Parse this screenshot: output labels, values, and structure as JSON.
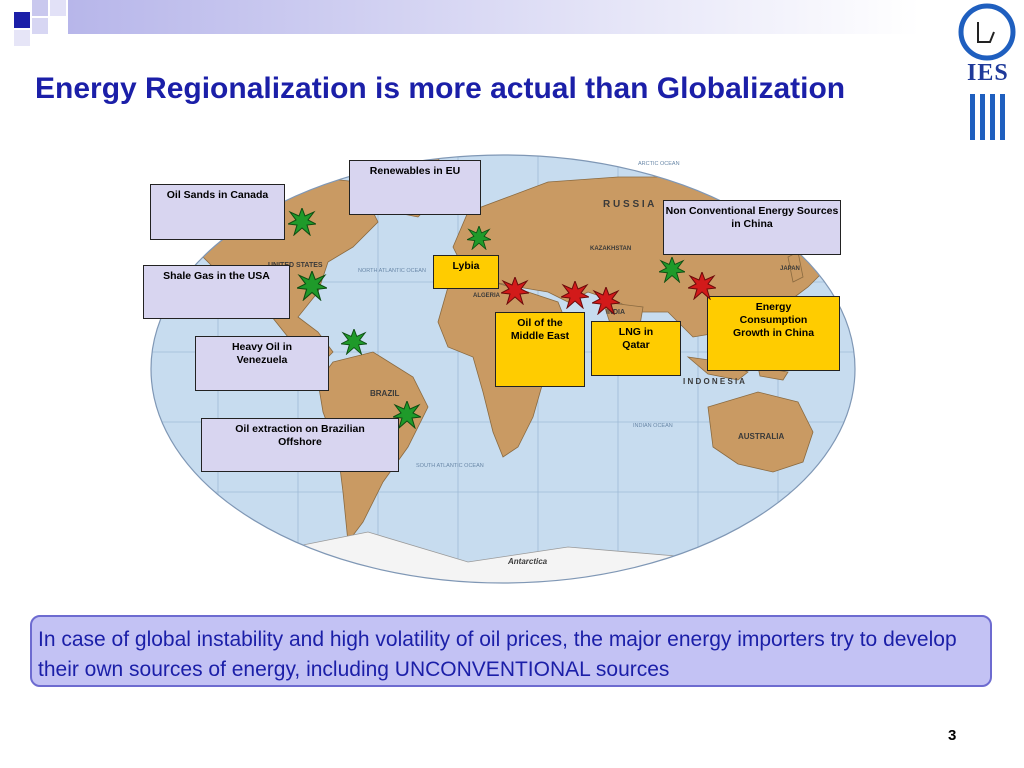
{
  "slide": {
    "title": "Energy Regionalization is more actual than Globalization",
    "page_number": "3"
  },
  "logo": {
    "text": "IES"
  },
  "callouts": {
    "renewables_eu": "Renewables in EU",
    "oil_sands_canada": "Oil Sands in Canada",
    "non_conventional_china": "Non Conventional Energy Sources in China",
    "lybia": "Lybia",
    "shale_gas_usa": "Shale Gas in the USA",
    "energy_consumption_china": "Energy Consumption Growth in China",
    "oil_middle_east": "Oil of the Middle East",
    "lng_qatar": "LNG in Qatar",
    "heavy_oil_venezuela": "Heavy Oil in Venezuela",
    "oil_brazil_offshore": "Oil extraction on Brazilian Offshore"
  },
  "map_labels": {
    "russia": "R U S S I A",
    "india": "INDIA",
    "indonesia": "I N D O N E S I A",
    "australia": "AUSTRALIA",
    "antarctica": "Antarctica",
    "brazil": "BRAZIL",
    "united_states": "UNITED STATES",
    "kazakhstan": "KAZAKHSTAN",
    "algeria": "ALGERIA",
    "japan": "JAPAN",
    "arctic_ocean": "ARCTIC OCEAN",
    "indian_ocean": "INDIAN OCEAN",
    "north_atlantic": "NORTH ATLANTIC OCEAN",
    "south_atlantic": "SOUTH ATLANTIC OCEAN"
  },
  "note": {
    "text": "In case of global instability and high volatility of oil prices, the major energy importers try to develop their own sources of energy, including UNCONVENTIONAL sources"
  },
  "colors": {
    "title": "#1b1fa8",
    "callout_lavender": "#d8d5f0",
    "callout_yellow": "#ffcc00",
    "star_green": "#1f9a2a",
    "star_red": "#d21a1a",
    "ocean": "#c7dcef",
    "land": "#c99a63",
    "note_bg": "#c3c2f4"
  }
}
